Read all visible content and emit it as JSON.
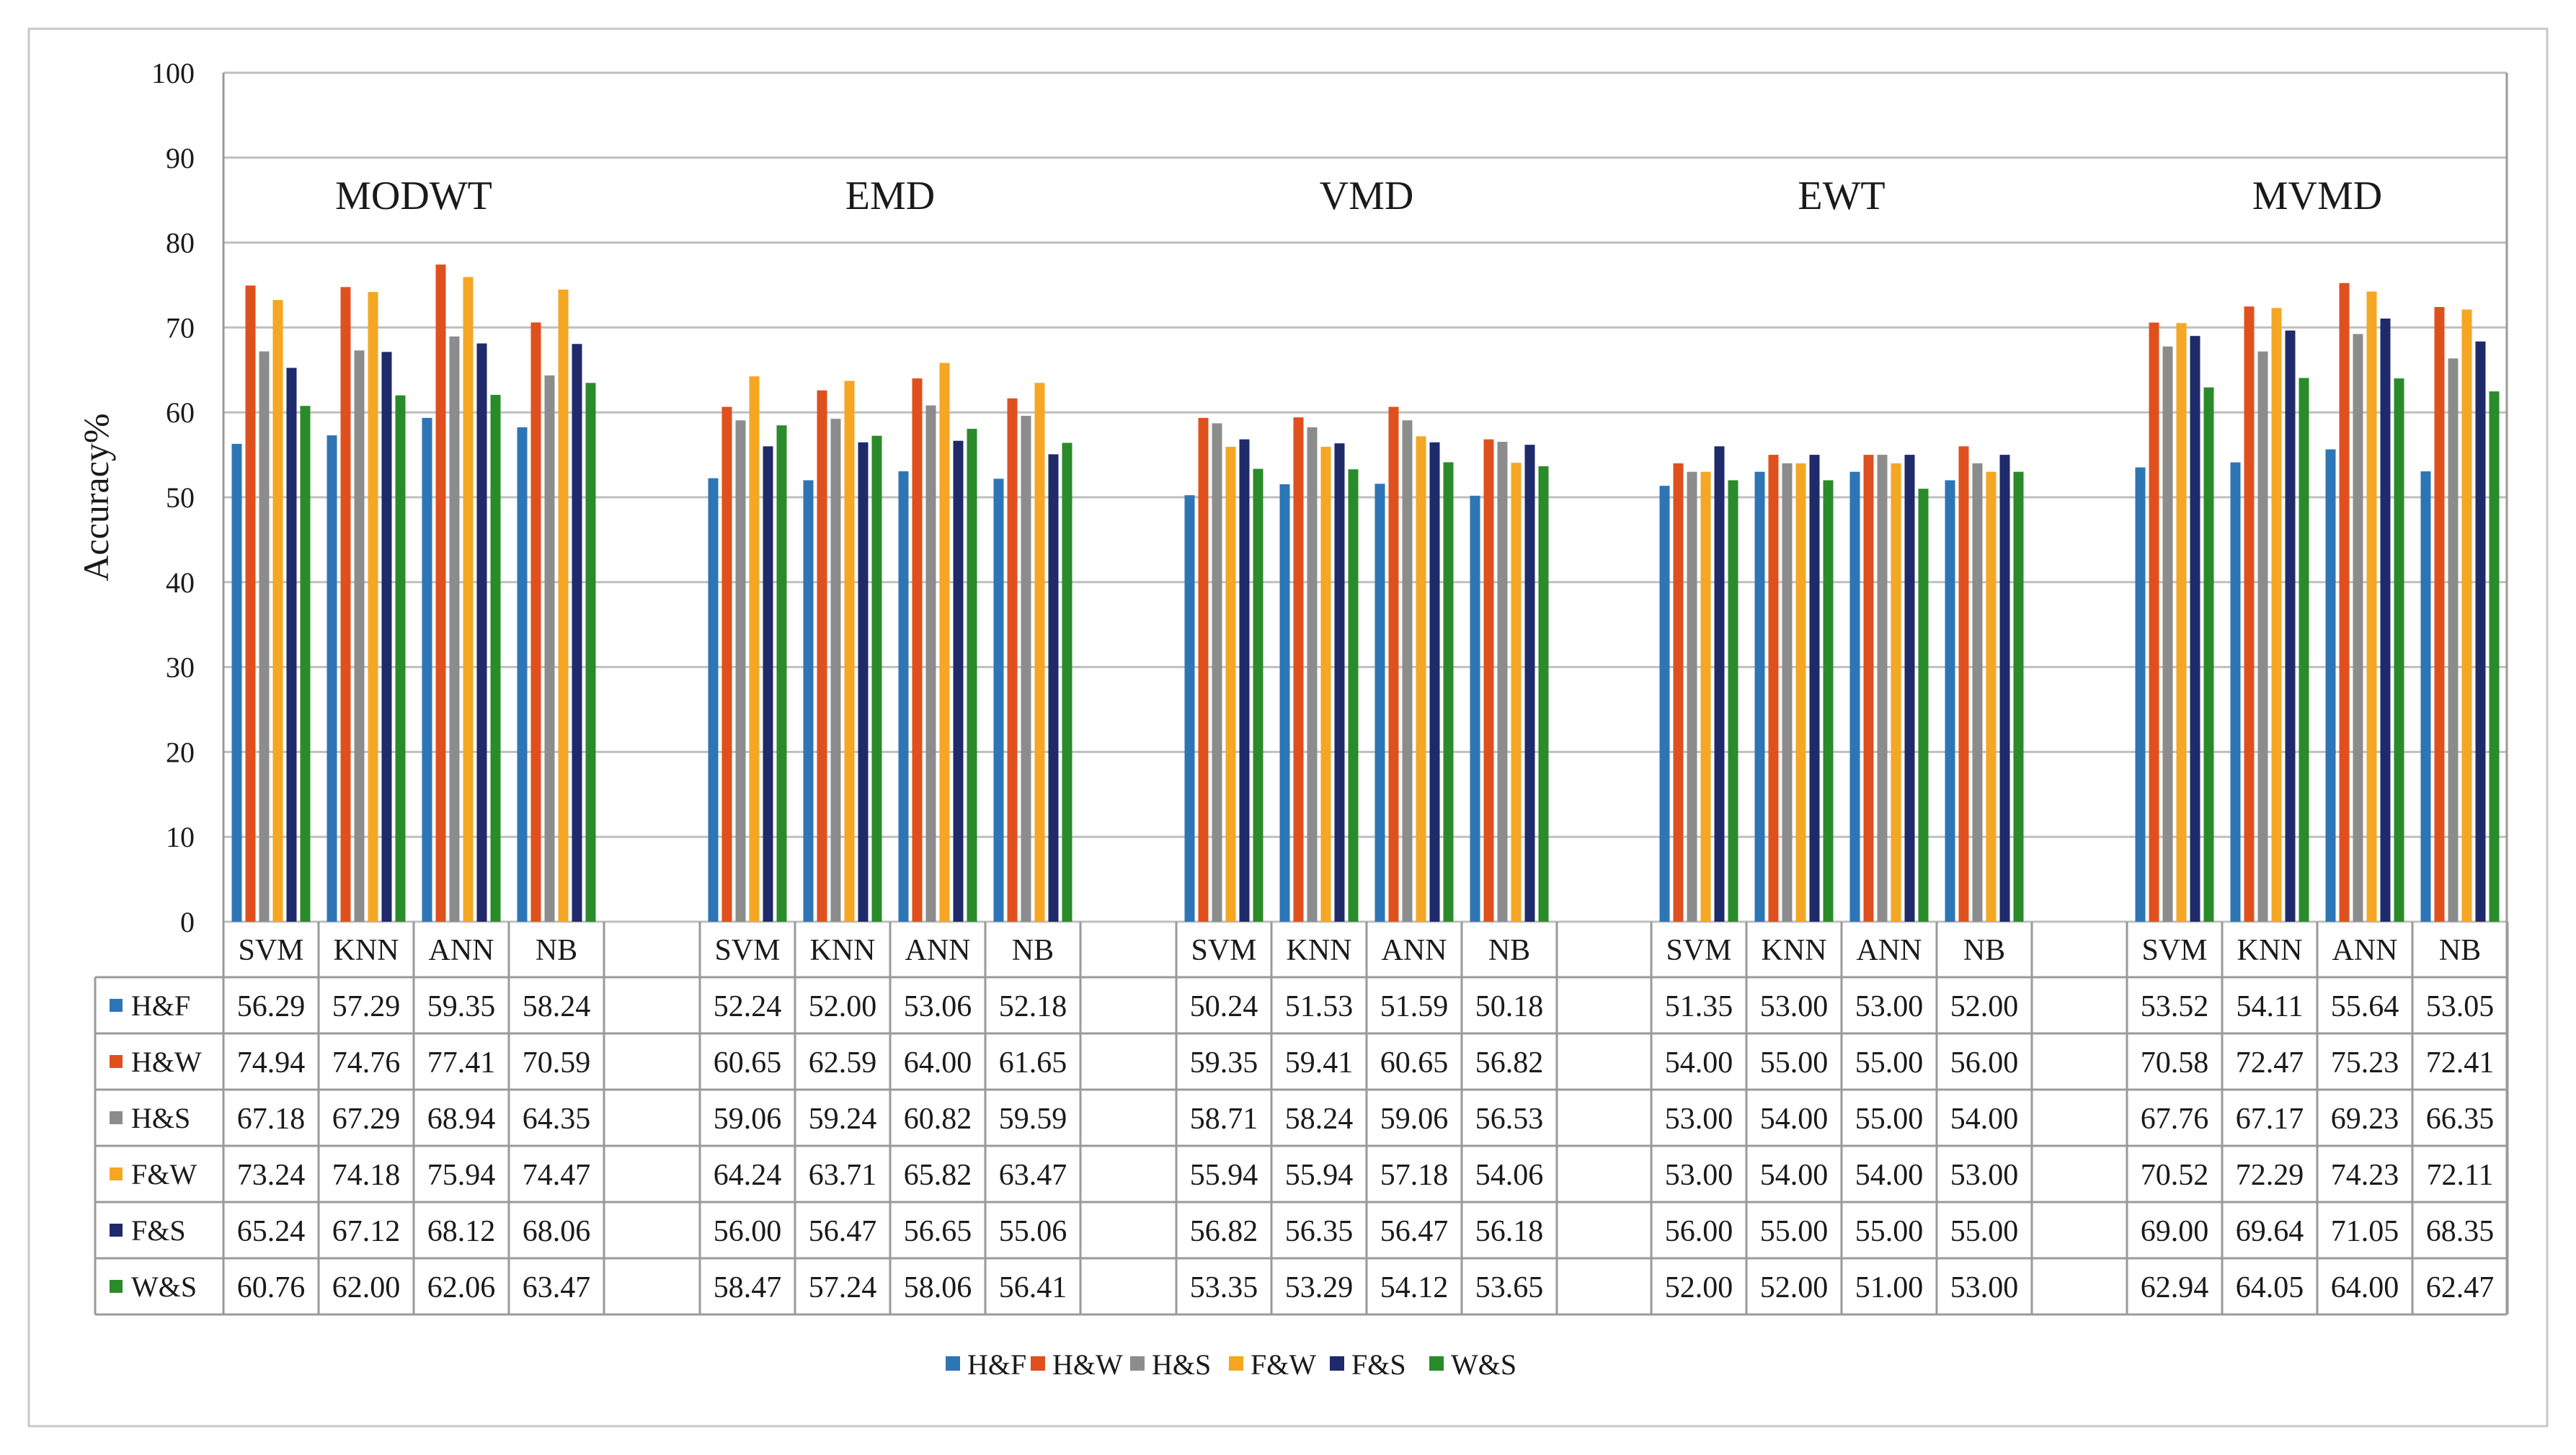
{
  "chart_data": {
    "type": "bar",
    "title": "",
    "xlabel": "",
    "ylabel": "Accuracy%",
    "ylim": [
      0,
      100
    ],
    "yticks": [
      0,
      10,
      20,
      30,
      40,
      50,
      60,
      70,
      80,
      90,
      100
    ],
    "grid": true,
    "legend_position": "bottom",
    "groups": [
      "MODWT",
      "EMD",
      "VMD",
      "EWT",
      "MVMD"
    ],
    "classifiers": [
      "SVM",
      "KNN",
      "ANN",
      "NB"
    ],
    "series": [
      {
        "name": "H&F",
        "color": "#2E75B6",
        "values": [
          [
            56.29,
            57.29,
            59.35,
            58.24
          ],
          [
            52.24,
            52.0,
            53.06,
            52.18
          ],
          [
            50.24,
            51.53,
            51.59,
            50.18
          ],
          [
            51.35,
            53.0,
            53.0,
            52.0
          ],
          [
            53.52,
            54.11,
            55.64,
            53.05
          ]
        ],
        "labels": [
          [
            "56.29",
            "57.29",
            "59.35",
            "58.24"
          ],
          [
            "52.24",
            "52.00",
            "53.06",
            "52.18"
          ],
          [
            "50.24",
            "51.53",
            "51.59",
            "50.18"
          ],
          [
            "51.35",
            "53.00",
            "53.00",
            "52.00"
          ],
          [
            "53.52",
            "54.11",
            "55.64",
            "53.05"
          ]
        ]
      },
      {
        "name": "H&W",
        "color": "#E0501E",
        "values": [
          [
            74.94,
            74.76,
            77.41,
            70.59
          ],
          [
            60.65,
            62.59,
            64.0,
            61.65
          ],
          [
            59.35,
            59.41,
            60.65,
            56.82
          ],
          [
            54.0,
            55.0,
            55.0,
            56.0
          ],
          [
            70.58,
            72.47,
            75.23,
            72.41
          ]
        ],
        "labels": [
          [
            "74.94",
            "74.76",
            "77.41",
            "70.59"
          ],
          [
            "60.65",
            "62.59",
            "64.00",
            "61.65"
          ],
          [
            "59.35",
            "59.41",
            "60.65",
            "56.82"
          ],
          [
            "54.00",
            "55.00",
            "55.00",
            "56.00"
          ],
          [
            "70.58",
            "72.47",
            "75.23",
            "72.41"
          ]
        ]
      },
      {
        "name": "H&S",
        "color": "#8C8C8C",
        "values": [
          [
            67.18,
            67.29,
            68.94,
            64.35
          ],
          [
            59.06,
            59.24,
            60.82,
            59.59
          ],
          [
            58.71,
            58.24,
            59.06,
            56.53
          ],
          [
            53.0,
            54.0,
            55.0,
            54.0
          ],
          [
            67.76,
            67.17,
            69.23,
            66.35
          ]
        ],
        "labels": [
          [
            "67.18",
            "67.29",
            "68.94",
            "64.35"
          ],
          [
            "59.06",
            "59.24",
            "60.82",
            "59.59"
          ],
          [
            "58.71",
            "58.24",
            "59.06",
            "56.53"
          ],
          [
            "53.00",
            "54.00",
            "55.00",
            "54.00"
          ],
          [
            "67.76",
            "67.17",
            "69.23",
            "66.35"
          ]
        ]
      },
      {
        "name": "F&W",
        "color": "#F5A623",
        "values": [
          [
            73.24,
            74.18,
            75.94,
            74.47
          ],
          [
            64.24,
            63.71,
            65.82,
            63.47
          ],
          [
            55.94,
            55.94,
            57.18,
            54.06
          ],
          [
            53.0,
            54.0,
            54.0,
            53.0
          ],
          [
            70.52,
            72.29,
            74.23,
            72.11
          ]
        ],
        "labels": [
          [
            "73.24",
            "74.18",
            "75.94",
            "74.47"
          ],
          [
            "64.24",
            "63.71",
            "65.82",
            "63.47"
          ],
          [
            "55.94",
            "55.94",
            "57.18",
            "54.06"
          ],
          [
            "53.00",
            "54.00",
            "54.00",
            "53.00"
          ],
          [
            "70.52",
            "72.29",
            "74.23",
            "72.11"
          ]
        ]
      },
      {
        "name": "F&S",
        "color": "#1F2A6B",
        "values": [
          [
            65.24,
            67.12,
            68.12,
            68.06
          ],
          [
            56.0,
            56.47,
            56.65,
            55.06
          ],
          [
            56.82,
            56.35,
            56.47,
            56.18
          ],
          [
            56.0,
            55.0,
            55.0,
            55.0
          ],
          [
            69.0,
            69.64,
            71.05,
            68.35
          ]
        ],
        "labels": [
          [
            "65.24",
            "67.12",
            "68.12",
            "68.06"
          ],
          [
            "56.00",
            "56.47",
            "56.65",
            "55.06"
          ],
          [
            "56.82",
            "56.35",
            "56.47",
            "56.18"
          ],
          [
            "56.00",
            "55.00",
            "55.00",
            "55.00"
          ],
          [
            "69.00",
            "69.64",
            "71.05",
            "68.35"
          ]
        ]
      },
      {
        "name": "W&S",
        "color": "#2A8B2A",
        "values": [
          [
            60.76,
            62.0,
            62.06,
            63.47
          ],
          [
            58.47,
            57.24,
            58.06,
            56.41
          ],
          [
            53.35,
            53.29,
            54.12,
            53.65
          ],
          [
            52.0,
            52.0,
            51.0,
            53.0
          ],
          [
            62.94,
            64.05,
            64.0,
            62.47
          ]
        ],
        "labels": [
          [
            "60.76",
            "62.00",
            "62.06",
            "63.47"
          ],
          [
            "58.47",
            "57.24",
            "58.06",
            "56.41"
          ],
          [
            "53.35",
            "53.29",
            "54.12",
            "53.65"
          ],
          [
            "52.00",
            "52.00",
            "51.00",
            "53.00"
          ],
          [
            "62.94",
            "64.05",
            "64.00",
            "62.47"
          ]
        ]
      }
    ]
  }
}
